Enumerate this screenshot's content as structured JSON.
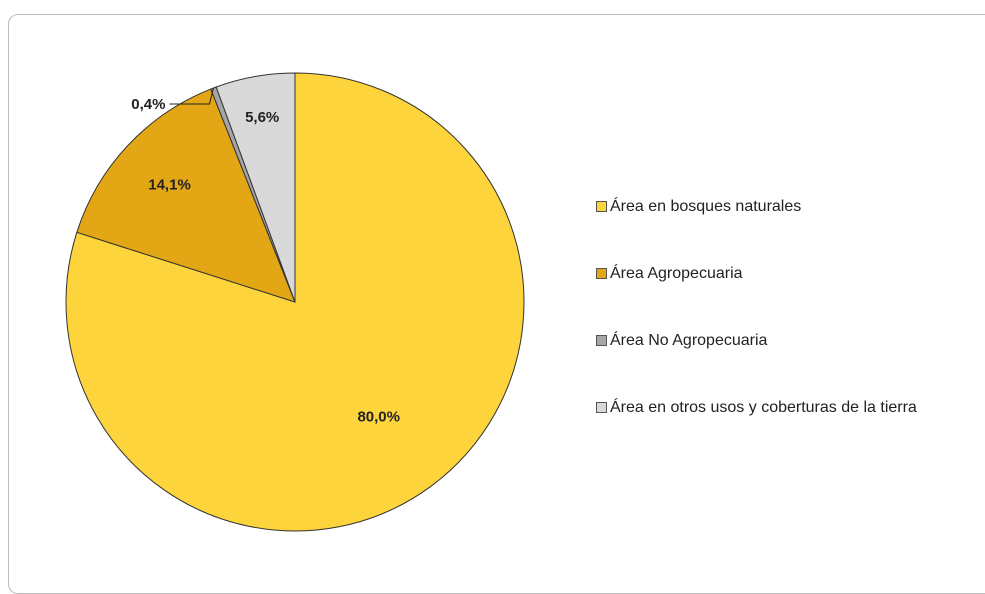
{
  "chart_data": {
    "type": "pie",
    "slices": [
      {
        "label": "Área en bosques naturales",
        "value": 80.0,
        "value_label": "80,0%",
        "color": "#fdd43b"
      },
      {
        "label": "Área Agropecuaria",
        "value": 14.1,
        "value_label": "14,1%",
        "color": "#e3a614"
      },
      {
        "label": "Área No Agropecuaria",
        "value": 0.4,
        "value_label": "0,4%",
        "color": "#a6a6a6"
      },
      {
        "label": "Área en otros usos y coberturas de la tierra",
        "value": 5.6,
        "value_label": "5,6%",
        "color": "#d9d9d9"
      }
    ],
    "start_angle_deg": 0,
    "direction": "clockwise",
    "legend_position": "right"
  }
}
